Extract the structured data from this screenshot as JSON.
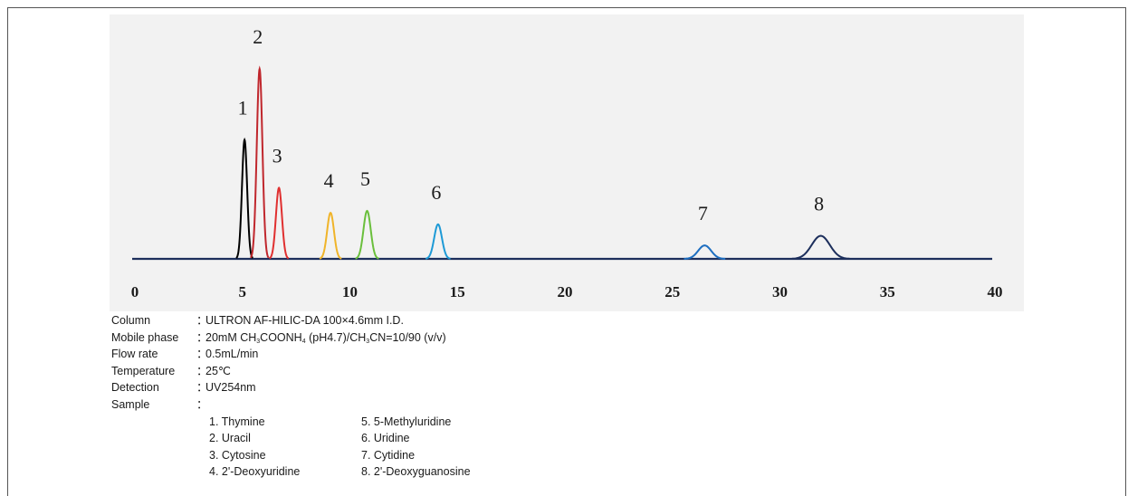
{
  "chart_data": {
    "type": "line",
    "title": "",
    "xlabel": "",
    "ylabel": "",
    "xlim": [
      0,
      40
    ],
    "x_ticks": [
      "0",
      "5",
      "10",
      "15",
      "20",
      "25",
      "30",
      "35",
      "40"
    ],
    "grid": false,
    "baseline": 0.0,
    "peaks": [
      {
        "label": "1",
        "retention_time": 5.1,
        "height": 0.62,
        "width": 0.12,
        "color": "#000000"
      },
      {
        "label": "2",
        "retention_time": 5.8,
        "height": 0.99,
        "width": 0.13,
        "color": "#c0272d"
      },
      {
        "label": "3",
        "retention_time": 6.7,
        "height": 0.37,
        "width": 0.14,
        "color": "#e03030"
      },
      {
        "label": "4",
        "retention_time": 9.1,
        "height": 0.24,
        "width": 0.16,
        "color": "#f0b429"
      },
      {
        "label": "5",
        "retention_time": 10.8,
        "height": 0.25,
        "width": 0.17,
        "color": "#6abf3c"
      },
      {
        "label": "6",
        "retention_time": 14.1,
        "height": 0.18,
        "width": 0.18,
        "color": "#1e9ad6"
      },
      {
        "label": "7",
        "retention_time": 26.5,
        "height": 0.07,
        "width": 0.3,
        "color": "#1e6fc1"
      },
      {
        "label": "8",
        "retention_time": 31.9,
        "height": 0.12,
        "width": 0.42,
        "color": "#1d2f5c"
      }
    ],
    "baseline_color": "#1d2f5c"
  },
  "conditions": {
    "column": {
      "label": "Column",
      "value": "ULTRON AF-HILIC-DA 100×4.6mm I.D."
    },
    "mobile_phase": {
      "label": "Mobile phase",
      "p1": "20mM CH",
      "s1": "3",
      "p2": "COONH",
      "s2": "4",
      "p3": " (pH4.7)/CH",
      "s3": "3",
      "p4": "CN=10/90 (v/v)"
    },
    "flow_rate": {
      "label": "Flow rate",
      "value": "0.5mL/min"
    },
    "temperature": {
      "label": "Temperature",
      "value": "25℃"
    },
    "detection": {
      "label": "Detection",
      "value": "UV254nm"
    },
    "sample": {
      "label": "Sample",
      "items": [
        "1. Thymine",
        "2. Uracil",
        "3. Cytosine",
        "4. 2'-Deoxyuridine",
        "5. 5-Methyluridine",
        "6. Uridine",
        "7. Cytidine",
        "8. 2'-Deoxyguanosine"
      ]
    },
    "colon": "："
  }
}
